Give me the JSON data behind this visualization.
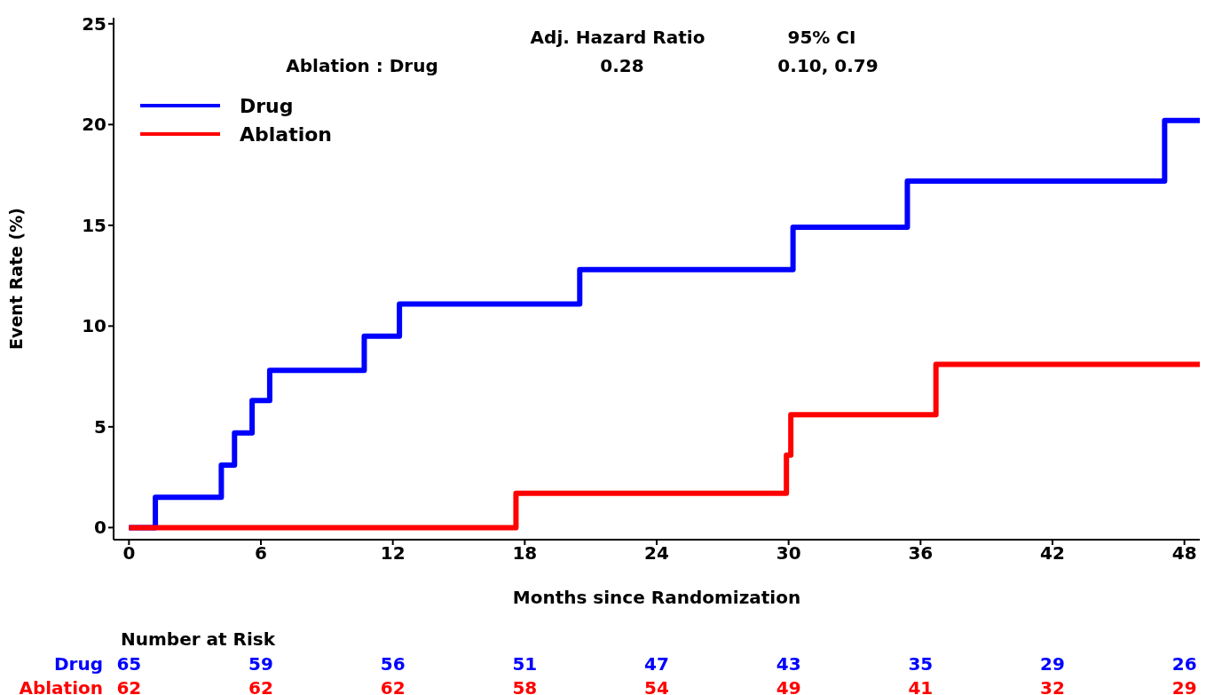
{
  "chart_data": {
    "type": "step",
    "xlabel": "Months since Randomization",
    "ylabel": "Event Rate (%)",
    "xlim": [
      -0.7,
      48.7
    ],
    "xticks": [
      0,
      6,
      12,
      18,
      24,
      30,
      36,
      42,
      48
    ],
    "ylim": [
      -0.6,
      25.3
    ],
    "yticks": [
      0,
      5,
      10,
      15,
      20,
      25
    ],
    "grid": false,
    "legend": "top left",
    "line_style": "solid",
    "marker": "none",
    "series": [
      {
        "name": "Drug",
        "color": "#0000ff",
        "x": [
          0,
          1.2,
          4.2,
          4.8,
          5.6,
          6.4,
          10.7,
          12.3,
          20.5,
          30.2,
          35.4,
          47.1,
          48.7
        ],
        "values": [
          0,
          1.5,
          3.1,
          4.7,
          6.3,
          7.8,
          9.5,
          11.1,
          12.8,
          14.9,
          17.2,
          20.2,
          20.2
        ]
      },
      {
        "name": "Ablation",
        "color": "#ff0000",
        "x": [
          0,
          17.6,
          29.9,
          30.1,
          36.7,
          48.7
        ],
        "values": [
          0,
          1.7,
          3.6,
          5.6,
          8.1,
          8.1
        ]
      }
    ],
    "annotations": [
      "Adj. Hazard Ratio",
      "95% CI",
      "Ablation : Drug",
      "0.28",
      "0.10, 0.79",
      "Number at Risk",
      "Drug",
      "65",
      "59",
      "56",
      "51",
      "47",
      "43",
      "35",
      "29",
      "26",
      "Ablation",
      "62",
      "62",
      "62",
      "58",
      "54",
      "49",
      "41",
      "32",
      "29"
    ]
  }
}
